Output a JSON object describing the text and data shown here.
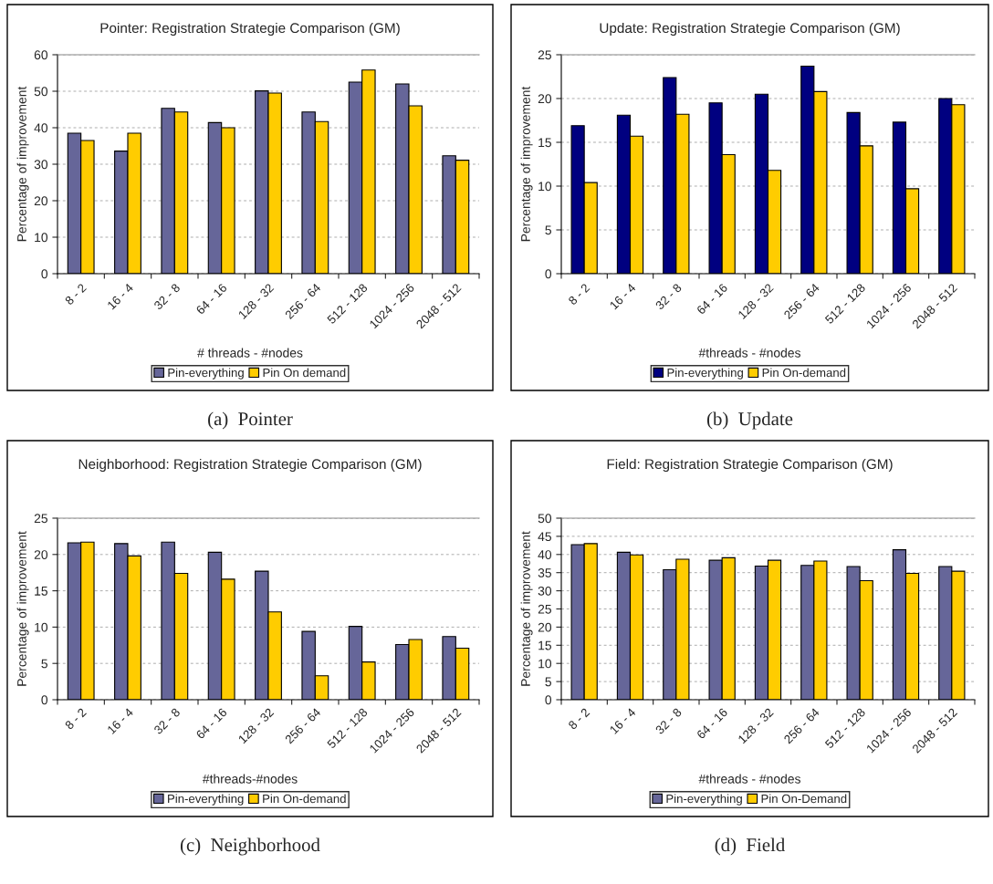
{
  "chart_data": [
    {
      "type": "bar",
      "title": "Pointer: Registration Strategie Comparison (GM)",
      "xlabel": "# threads - #nodes",
      "ylabel": "Percentage of improvement",
      "categories": [
        "8 - 2",
        "16 - 4",
        "32 - 8",
        "64 - 16",
        "128 - 32",
        "256 - 64",
        "512 - 128",
        "1024 - 256",
        "2048 - 512"
      ],
      "series": [
        {
          "name": "Pin-everything",
          "color": "#666699",
          "values": [
            38.5,
            33.6,
            45.3,
            41.4,
            50.1,
            44.3,
            52.5,
            52.0,
            32.3
          ]
        },
        {
          "name": "Pin On demand",
          "color": "#ffcc00",
          "values": [
            36.5,
            38.5,
            44.3,
            40.0,
            49.5,
            41.7,
            55.8,
            46.0,
            31.1
          ]
        }
      ],
      "ylim": [
        0,
        60
      ],
      "yticks": [
        0,
        10,
        20,
        30,
        40,
        50,
        60
      ],
      "grid": "y",
      "legend": "bottom",
      "annotations": [
        "(a)  Pointer"
      ]
    },
    {
      "type": "bar",
      "title": "Update: Registration Strategie Comparison (GM)",
      "xlabel": "#threads - #nodes",
      "ylabel": "Percentage of improvement",
      "categories": [
        "8 - 2",
        "16 - 4",
        "32 - 8",
        "64 - 16",
        "128 - 32",
        "256 - 64",
        "512 - 128",
        "1024 - 256",
        "2048 - 512"
      ],
      "series": [
        {
          "name": "Pin-everything",
          "color": "#000080",
          "values": [
            16.9,
            18.1,
            22.4,
            19.5,
            20.5,
            23.7,
            18.4,
            17.3,
            20.0
          ]
        },
        {
          "name": "Pin On-demand",
          "color": "#ffcc00",
          "values": [
            10.4,
            15.7,
            18.2,
            13.6,
            11.8,
            20.8,
            14.6,
            9.7,
            19.3
          ]
        }
      ],
      "ylim": [
        0,
        25
      ],
      "yticks": [
        0,
        5,
        10,
        15,
        20,
        25
      ],
      "grid": "y",
      "legend": "bottom",
      "annotations": [
        "(b)  Update"
      ]
    },
    {
      "type": "bar",
      "title": "Neighborhood: Registration Strategie Comparison (GM)",
      "xlabel": "#threads-#nodes",
      "ylabel": "Percentage of improvement",
      "categories": [
        "8 - 2",
        "16 - 4",
        "32 - 8",
        "64 - 16",
        "128 - 32",
        "256 - 64",
        "512 - 128",
        "1024 - 256",
        "2048 - 512"
      ],
      "series": [
        {
          "name": "Pin-everything",
          "color": "#666699",
          "values": [
            21.6,
            21.5,
            21.7,
            20.3,
            17.7,
            9.4,
            10.1,
            7.6,
            8.7
          ]
        },
        {
          "name": "Pin On-demand",
          "color": "#ffcc00",
          "values": [
            21.7,
            19.8,
            17.4,
            16.6,
            12.1,
            3.3,
            5.2,
            8.3,
            7.1
          ]
        }
      ],
      "ylim": [
        0,
        25
      ],
      "yticks": [
        0,
        5,
        10,
        15,
        20,
        25
      ],
      "grid": "y",
      "legend": "bottom",
      "annotations": [
        "(c)  Neighborhood"
      ]
    },
    {
      "type": "bar",
      "title": "Field: Registration Strategie Comparison (GM)",
      "xlabel": "#threads - #nodes",
      "ylabel": "Percentage of improvement",
      "categories": [
        "8 - 2",
        "16 - 4",
        "32 - 8",
        "64 - 16",
        "128 - 32",
        "256 - 64",
        "512 - 128",
        "1024 - 256",
        "2048 - 512"
      ],
      "series": [
        {
          "name": "Pin-everything",
          "color": "#666699",
          "values": [
            42.7,
            40.6,
            35.8,
            38.4,
            36.8,
            37.0,
            36.7,
            41.3,
            36.7
          ]
        },
        {
          "name": "Pin On-Demand",
          "color": "#ffcc00",
          "values": [
            43.0,
            39.9,
            38.7,
            39.1,
            38.4,
            38.2,
            32.8,
            34.8,
            35.4
          ]
        }
      ],
      "ylim": [
        0,
        50
      ],
      "yticks": [
        0,
        5,
        10,
        15,
        20,
        25,
        30,
        35,
        40,
        45,
        50
      ],
      "grid": "y",
      "legend": "bottom",
      "annotations": [
        "(d)  Field"
      ]
    }
  ]
}
